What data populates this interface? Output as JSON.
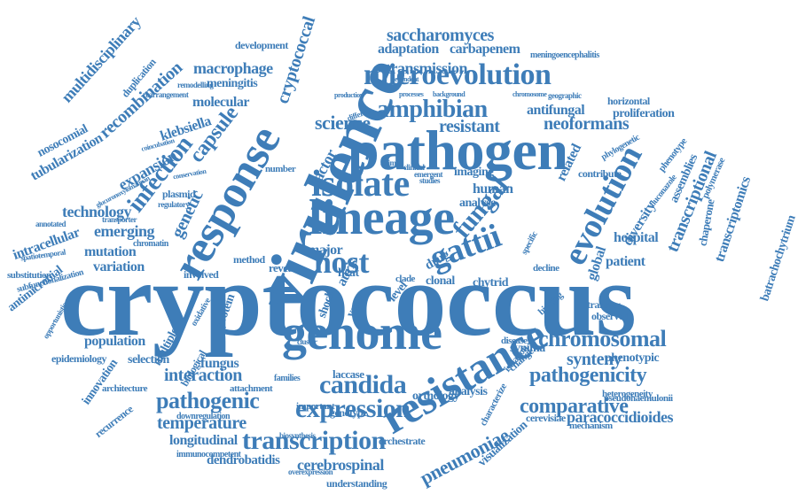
{
  "cloud": {
    "word_color": "#3E7DB8",
    "background": "#FFFFFF",
    "words": [
      "cryptococcus",
      "virulence",
      "genome",
      "pathogen",
      "lineage",
      "response",
      "resistance",
      "isolate",
      "microevolution",
      "host",
      "gattii",
      "candida",
      "chromosomal",
      "pathogenicity",
      "evolution",
      "expression",
      "transcription",
      "infection",
      "capsule",
      "pathogenic",
      "fungal",
      "comparative",
      "amphibian",
      "cryptococcal",
      "science",
      "resistant",
      "neoformans",
      "recombination",
      "saccharomyces",
      "adaptation",
      "carbapenem",
      "transmission",
      "macrophage",
      "multidisciplinary",
      "technology",
      "emerging",
      "tubularization",
      "nosocomial",
      "klebsiella",
      "expansion",
      "genetic",
      "population",
      "fungus",
      "interaction",
      "temperature",
      "longitudinal",
      "dendrobatidis",
      "cerebrospinal",
      "understanding",
      "pneumoniae",
      "visualization",
      "paracoccidioides",
      "synteny",
      "phenotypic",
      "hospital",
      "patient",
      "transcriptional",
      "transcriptomics",
      "batrachochytrium",
      "antifungal",
      "proliferation",
      "global",
      "diversity",
      "assemblies",
      "chaperone",
      "polymerase",
      "related",
      "human",
      "analyse",
      "imaging",
      "factor",
      "auris",
      "major",
      "drug",
      "mutation",
      "variation",
      "intracellular",
      "antimicrobial",
      "selection",
      "innovation",
      "recurrence",
      "architecture",
      "epidemiology",
      "orthology",
      "synima",
      "laccase",
      "analysis",
      "cerevisiae",
      "pseudohaemulonii",
      "mechanism",
      "orchestrate",
      "biosynthesis",
      "development",
      "meningitis",
      "molecular",
      "duplication",
      "plasmid",
      "multiple",
      "protein",
      "heat",
      "shock",
      "clonal",
      "chytrid",
      "level",
      "yeast",
      "clade",
      "cluster",
      "reveal",
      "involved",
      "method",
      "number",
      "remodelling",
      "rearrangement",
      "meningoencephalitis",
      "dependent",
      "production",
      "processes",
      "background",
      "chromosome",
      "geographic",
      "horizontal",
      "phylogenetic",
      "phenotype",
      "fluconazole",
      "contribute",
      "studies",
      "emergent",
      "clinical",
      "animal",
      "substitution",
      "subfunctionalization",
      "opportunistic",
      "chromatin",
      "oxidative",
      "biological",
      "transfer",
      "observed",
      "specific",
      "binding",
      "decline",
      "change",
      "isolation",
      "disease",
      "attachment",
      "families",
      "important",
      "genotype",
      "downregulation",
      "immunocompetent",
      "overexpression",
      "characterize",
      "heterogeneity",
      "regulatory",
      "coincubation",
      "conservation",
      "glucuronoxylomannan",
      "annotated",
      "spatiotemporal",
      "transporter",
      "different"
    ]
  }
}
